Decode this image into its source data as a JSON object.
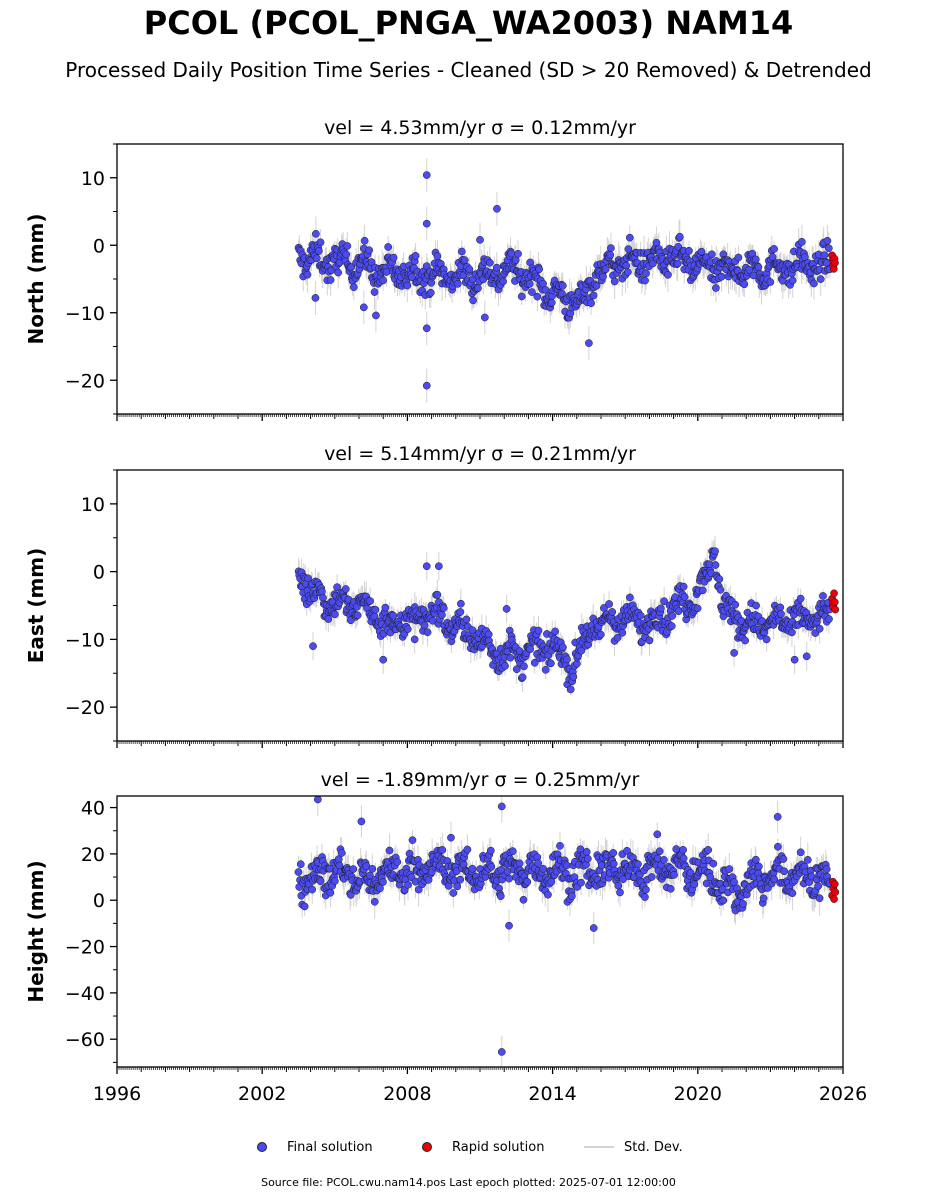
{
  "title": "PCOL (PCOL_PNGA_WA2003) NAM14",
  "subtitle": "Processed Daily Position Time Series - Cleaned (SD > 20 Removed) & Detrended",
  "footer": "Source file: PCOL.cwu.nam14.pos  Last epoch plotted: 2025-07-01 12:00:00",
  "colors": {
    "final": "#4b4bf0",
    "rapid": "#e8000b",
    "stddev": "#d3d3d3",
    "edge": "#1a1a1a"
  },
  "legend": {
    "final_label": "Final solution",
    "rapid_label": "Rapid solution",
    "std_label": "Std. Dev."
  },
  "chart_data": [
    {
      "type": "scatter",
      "title": "vel = 4.53mm/yr   σ = 0.12mm/yr",
      "ylabel": "North (mm)",
      "xlim": [
        1996,
        2026
      ],
      "ylim": [
        -25,
        15
      ],
      "yticks": [
        10,
        0,
        -10,
        -20
      ],
      "ytick_labels": [
        "10",
        "0",
        "−10",
        "−20"
      ],
      "trend": [
        [
          2003.5,
          -1.5
        ],
        [
          2004.2,
          -2.0
        ],
        [
          2005.0,
          -2.5
        ],
        [
          2006.0,
          -2.5
        ],
        [
          2006.8,
          -4.0
        ],
        [
          2008.0,
          -4.0
        ],
        [
          2009.5,
          -4.5
        ],
        [
          2011.0,
          -4.5
        ],
        [
          2012.5,
          -3.5
        ],
        [
          2013.5,
          -6.0
        ],
        [
          2014.5,
          -8.0
        ],
        [
          2015.2,
          -8.5
        ],
        [
          2015.8,
          -4.0
        ],
        [
          2017.0,
          -2.5
        ],
        [
          2019.0,
          -2.0
        ],
        [
          2020.5,
          -3.5
        ],
        [
          2022.5,
          -3.5
        ],
        [
          2024.5,
          -3.0
        ],
        [
          2025.45,
          -3.0
        ]
      ],
      "spread": 2.0,
      "err": 1.8,
      "outliers": [
        [
          2008.8,
          10.4
        ],
        [
          2008.8,
          3.2
        ],
        [
          2008.8,
          -12.3
        ],
        [
          2008.8,
          -20.8
        ],
        [
          2011.7,
          5.4
        ],
        [
          2004.2,
          -7.8
        ],
        [
          2011.2,
          -10.7
        ],
        [
          2015.5,
          -14.5
        ],
        [
          2006.7,
          -10.4
        ],
        [
          2006.2,
          -9.2
        ],
        [
          2024.3,
          0.5
        ],
        [
          2011.0,
          0.8
        ]
      ],
      "rapid": [
        [
          2025.55,
          -1.5
        ],
        [
          2025.58,
          -2.2
        ],
        [
          2025.6,
          -3.0
        ],
        [
          2025.62,
          -3.5
        ],
        [
          2025.65,
          -2.0
        ],
        [
          2025.67,
          -2.6
        ]
      ]
    },
    {
      "type": "scatter",
      "title": "vel = 5.14mm/yr   σ = 0.21mm/yr",
      "ylabel": "East (mm)",
      "xlim": [
        1996,
        2026
      ],
      "ylim": [
        -25,
        15
      ],
      "yticks": [
        10,
        0,
        -10,
        -20
      ],
      "ytick_labels": [
        "10",
        "0",
        "−10",
        "−20"
      ],
      "trend": [
        [
          2003.5,
          0.5
        ],
        [
          2004.0,
          -3.0
        ],
        [
          2005.0,
          -4.5
        ],
        [
          2006.5,
          -5.5
        ],
        [
          2007.2,
          -8.0
        ],
        [
          2009.0,
          -6.0
        ],
        [
          2010.5,
          -9.0
        ],
        [
          2011.5,
          -11.5
        ],
        [
          2012.5,
          -12.5
        ],
        [
          2014.0,
          -11.0
        ],
        [
          2014.8,
          -14.0
        ],
        [
          2015.5,
          -9.0
        ],
        [
          2016.5,
          -7.0
        ],
        [
          2018.0,
          -7.5
        ],
        [
          2019.5,
          -4.5
        ],
        [
          2020.2,
          -2.0
        ],
        [
          2020.7,
          3.0
        ],
        [
          2021.0,
          -5.0
        ],
        [
          2022.0,
          -8.0
        ],
        [
          2023.5,
          -7.5
        ],
        [
          2025.45,
          -6.5
        ]
      ],
      "spread": 2.0,
      "err": 1.5,
      "outliers": [
        [
          2004.1,
          -11.0
        ],
        [
          2008.8,
          0.8
        ],
        [
          2009.3,
          0.8
        ],
        [
          2012.1,
          -5.5
        ],
        [
          2024.0,
          -13.0
        ],
        [
          2024.5,
          -12.5
        ],
        [
          2021.5,
          -12.0
        ],
        [
          2007.0,
          -13.0
        ],
        [
          2008.3,
          -10.0
        ]
      ],
      "rapid": [
        [
          2025.55,
          -4.0
        ],
        [
          2025.58,
          -4.8
        ],
        [
          2025.6,
          -5.2
        ],
        [
          2025.63,
          -3.2
        ],
        [
          2025.66,
          -4.5
        ],
        [
          2025.68,
          -5.6
        ]
      ]
    },
    {
      "type": "scatter",
      "title": "vel = -1.89mm/yr   σ = 0.25mm/yr",
      "ylabel": "Height (mm)",
      "xlim": [
        1996,
        2026
      ],
      "ylim": [
        -72,
        45
      ],
      "yticks": [
        40,
        20,
        0,
        -20,
        -40,
        -60
      ],
      "ytick_labels": [
        "40",
        "20",
        "0",
        "−20",
        "−40",
        "−60"
      ],
      "trend": [
        [
          2003.5,
          10.0
        ],
        [
          2005.0,
          12.0
        ],
        [
          2006.5,
          8.0
        ],
        [
          2007.0,
          12.0
        ],
        [
          2009.0,
          14.0
        ],
        [
          2011.0,
          12.0
        ],
        [
          2013.0,
          13.0
        ],
        [
          2015.0,
          12.0
        ],
        [
          2017.0,
          13.0
        ],
        [
          2019.0,
          14.0
        ],
        [
          2020.5,
          12.0
        ],
        [
          2021.5,
          3.0
        ],
        [
          2022.5,
          10.0
        ],
        [
          2024.0,
          11.0
        ],
        [
          2025.45,
          8.0
        ]
      ],
      "spread": 7.0,
      "err": 5.0,
      "outliers": [
        [
          2004.3,
          43.5
        ],
        [
          2011.9,
          40.5
        ],
        [
          2011.9,
          -65.5
        ],
        [
          2012.2,
          -11.0
        ],
        [
          2015.7,
          -12.0
        ],
        [
          2023.3,
          36.0
        ],
        [
          2006.1,
          34.0
        ],
        [
          2009.8,
          27.0
        ]
      ],
      "rapid": [
        [
          2025.55,
          2.0
        ],
        [
          2025.58,
          8.0
        ],
        [
          2025.6,
          5.0
        ],
        [
          2025.63,
          0.5
        ],
        [
          2025.66,
          7.0
        ],
        [
          2025.68,
          3.5
        ]
      ]
    }
  ],
  "xticks": [
    1996,
    2002,
    2008,
    2014,
    2020,
    2026
  ],
  "xtick_labels": [
    "1996",
    "2002",
    "2008",
    "2014",
    "2020",
    "2026"
  ]
}
